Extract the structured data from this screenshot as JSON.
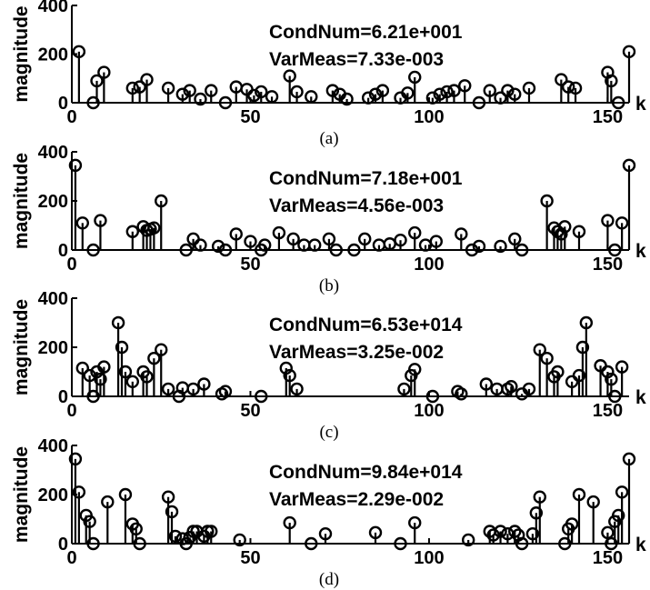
{
  "chart_data": [
    {
      "type": "stem",
      "panel_label": "(a)",
      "ylabel": "magnitude",
      "xlabel": "k",
      "xlim": [
        0,
        156
      ],
      "ylim": [
        0,
        400
      ],
      "xticks": [
        "0",
        "50",
        "100",
        "150"
      ],
      "yticks": [
        "0",
        "200",
        "400"
      ],
      "annotations": [
        "CondNum=6.21e+001",
        "VarMeas=7.33e-003"
      ],
      "points": [
        [
          2,
          210
        ],
        [
          6,
          0
        ],
        [
          7,
          90
        ],
        [
          9,
          125
        ],
        [
          17,
          60
        ],
        [
          19,
          65
        ],
        [
          21,
          95
        ],
        [
          27,
          60
        ],
        [
          31,
          35
        ],
        [
          33,
          50
        ],
        [
          36,
          15
        ],
        [
          39,
          50
        ],
        [
          43,
          0
        ],
        [
          46,
          65
        ],
        [
          49,
          55
        ],
        [
          51,
          30
        ],
        [
          53,
          45
        ],
        [
          56,
          25
        ],
        [
          61,
          110
        ],
        [
          63,
          45
        ],
        [
          67,
          25
        ],
        [
          73,
          50
        ],
        [
          75,
          35
        ],
        [
          77,
          15
        ],
        [
          83,
          20
        ],
        [
          85,
          35
        ],
        [
          87,
          50
        ],
        [
          92,
          20
        ],
        [
          94,
          40
        ],
        [
          96,
          105
        ],
        [
          101,
          20
        ],
        [
          103,
          35
        ],
        [
          105,
          45
        ],
        [
          107,
          50
        ],
        [
          110,
          70
        ],
        [
          114,
          0
        ],
        [
          117,
          50
        ],
        [
          120,
          20
        ],
        [
          122,
          50
        ],
        [
          124,
          35
        ],
        [
          128,
          60
        ],
        [
          137,
          95
        ],
        [
          139,
          65
        ],
        [
          141,
          60
        ],
        [
          150,
          125
        ],
        [
          151,
          90
        ],
        [
          153,
          0
        ],
        [
          156,
          210
        ]
      ]
    },
    {
      "type": "stem",
      "panel_label": "(b)",
      "ylabel": "magnitude",
      "xlabel": "k",
      "xlim": [
        0,
        156
      ],
      "ylim": [
        0,
        400
      ],
      "xticks": [
        "0",
        "50",
        "100",
        "150"
      ],
      "yticks": [
        "0",
        "200",
        "400"
      ],
      "annotations": [
        "CondNum=7.18e+001",
        "VarMeas=4.56e-003"
      ],
      "points": [
        [
          1,
          345
        ],
        [
          3,
          110
        ],
        [
          6,
          0
        ],
        [
          8,
          120
        ],
        [
          17,
          75
        ],
        [
          20,
          95
        ],
        [
          21,
          80
        ],
        [
          22,
          85
        ],
        [
          23,
          90
        ],
        [
          25,
          200
        ],
        [
          32,
          0
        ],
        [
          34,
          45
        ],
        [
          36,
          20
        ],
        [
          41,
          15
        ],
        [
          43,
          0
        ],
        [
          46,
          65
        ],
        [
          50,
          35
        ],
        [
          53,
          0
        ],
        [
          54,
          20
        ],
        [
          58,
          70
        ],
        [
          62,
          45
        ],
        [
          65,
          20
        ],
        [
          68,
          20
        ],
        [
          72,
          45
        ],
        [
          74,
          0
        ],
        [
          79,
          0
        ],
        [
          82,
          45
        ],
        [
          86,
          20
        ],
        [
          89,
          25
        ],
        [
          92,
          40
        ],
        [
          96,
          70
        ],
        [
          99,
          20
        ],
        [
          102,
          35
        ],
        [
          109,
          65
        ],
        [
          112,
          0
        ],
        [
          114,
          15
        ],
        [
          120,
          15
        ],
        [
          124,
          45
        ],
        [
          126,
          0
        ],
        [
          133,
          200
        ],
        [
          135,
          90
        ],
        [
          136,
          75
        ],
        [
          137,
          65
        ],
        [
          138,
          95
        ],
        [
          142,
          75
        ],
        [
          150,
          120
        ],
        [
          152,
          0
        ],
        [
          154,
          110
        ],
        [
          156,
          345
        ]
      ]
    },
    {
      "type": "stem",
      "panel_label": "(c)",
      "ylabel": "magnitude",
      "xlabel": "k",
      "xlim": [
        0,
        156
      ],
      "ylim": [
        0,
        400
      ],
      "xticks": [
        "0",
        "50",
        "100",
        "150"
      ],
      "yticks": [
        "0",
        "200",
        "400"
      ],
      "annotations": [
        "CondNum=6.53e+014",
        "VarMeas=3.25e-002"
      ],
      "points": [
        [
          3,
          115
        ],
        [
          5,
          85
        ],
        [
          6,
          0
        ],
        [
          7,
          100
        ],
        [
          8,
          70
        ],
        [
          9,
          120
        ],
        [
          13,
          300
        ],
        [
          14,
          200
        ],
        [
          15,
          100
        ],
        [
          17,
          60
        ],
        [
          20,
          100
        ],
        [
          21,
          80
        ],
        [
          23,
          155
        ],
        [
          25,
          190
        ],
        [
          27,
          30
        ],
        [
          30,
          0
        ],
        [
          31,
          35
        ],
        [
          34,
          30
        ],
        [
          37,
          50
        ],
        [
          42,
          10
        ],
        [
          43,
          20
        ],
        [
          53,
          0
        ],
        [
          60,
          115
        ],
        [
          61,
          85
        ],
        [
          63,
          30
        ],
        [
          93,
          30
        ],
        [
          95,
          85
        ],
        [
          96,
          110
        ],
        [
          101,
          0
        ],
        [
          108,
          20
        ],
        [
          109,
          10
        ],
        [
          116,
          50
        ],
        [
          119,
          30
        ],
        [
          122,
          30
        ],
        [
          123,
          40
        ],
        [
          126,
          10
        ],
        [
          128,
          30
        ],
        [
          131,
          190
        ],
        [
          133,
          155
        ],
        [
          135,
          80
        ],
        [
          136,
          100
        ],
        [
          140,
          60
        ],
        [
          142,
          85
        ],
        [
          143,
          200
        ],
        [
          144,
          300
        ],
        [
          148,
          125
        ],
        [
          150,
          100
        ],
        [
          151,
          70
        ],
        [
          152,
          0
        ],
        [
          154,
          120
        ]
      ]
    },
    {
      "type": "stem",
      "panel_label": "(d)",
      "ylabel": "magnitude",
      "xlabel": "k",
      "xlim": [
        0,
        156
      ],
      "ylim": [
        0,
        400
      ],
      "xticks": [
        "0",
        "50",
        "100",
        "150"
      ],
      "yticks": [
        "0",
        "200",
        "400"
      ],
      "annotations": [
        "CondNum=9.84e+014",
        "VarMeas=2.29e-002"
      ],
      "points": [
        [
          1,
          345
        ],
        [
          2,
          210
        ],
        [
          4,
          115
        ],
        [
          5,
          90
        ],
        [
          6,
          0
        ],
        [
          10,
          170
        ],
        [
          15,
          200
        ],
        [
          17,
          80
        ],
        [
          18,
          60
        ],
        [
          19,
          0
        ],
        [
          27,
          190
        ],
        [
          28,
          130
        ],
        [
          29,
          30
        ],
        [
          31,
          20
        ],
        [
          32,
          0
        ],
        [
          33,
          25
        ],
        [
          34,
          50
        ],
        [
          35,
          50
        ],
        [
          37,
          30
        ],
        [
          38,
          50
        ],
        [
          39,
          50
        ],
        [
          47,
          15
        ],
        [
          61,
          85
        ],
        [
          67,
          0
        ],
        [
          71,
          40
        ],
        [
          85,
          45
        ],
        [
          92,
          0
        ],
        [
          96,
          85
        ],
        [
          111,
          15
        ],
        [
          117,
          50
        ],
        [
          118,
          35
        ],
        [
          120,
          50
        ],
        [
          122,
          40
        ],
        [
          124,
          50
        ],
        [
          125,
          35
        ],
        [
          126,
          0
        ],
        [
          129,
          40
        ],
        [
          130,
          125
        ],
        [
          131,
          190
        ],
        [
          138,
          0
        ],
        [
          139,
          60
        ],
        [
          140,
          80
        ],
        [
          142,
          200
        ],
        [
          146,
          170
        ],
        [
          150,
          45
        ],
        [
          151,
          0
        ],
        [
          152,
          90
        ],
        [
          153,
          115
        ],
        [
          154,
          210
        ],
        [
          156,
          345
        ]
      ]
    }
  ]
}
